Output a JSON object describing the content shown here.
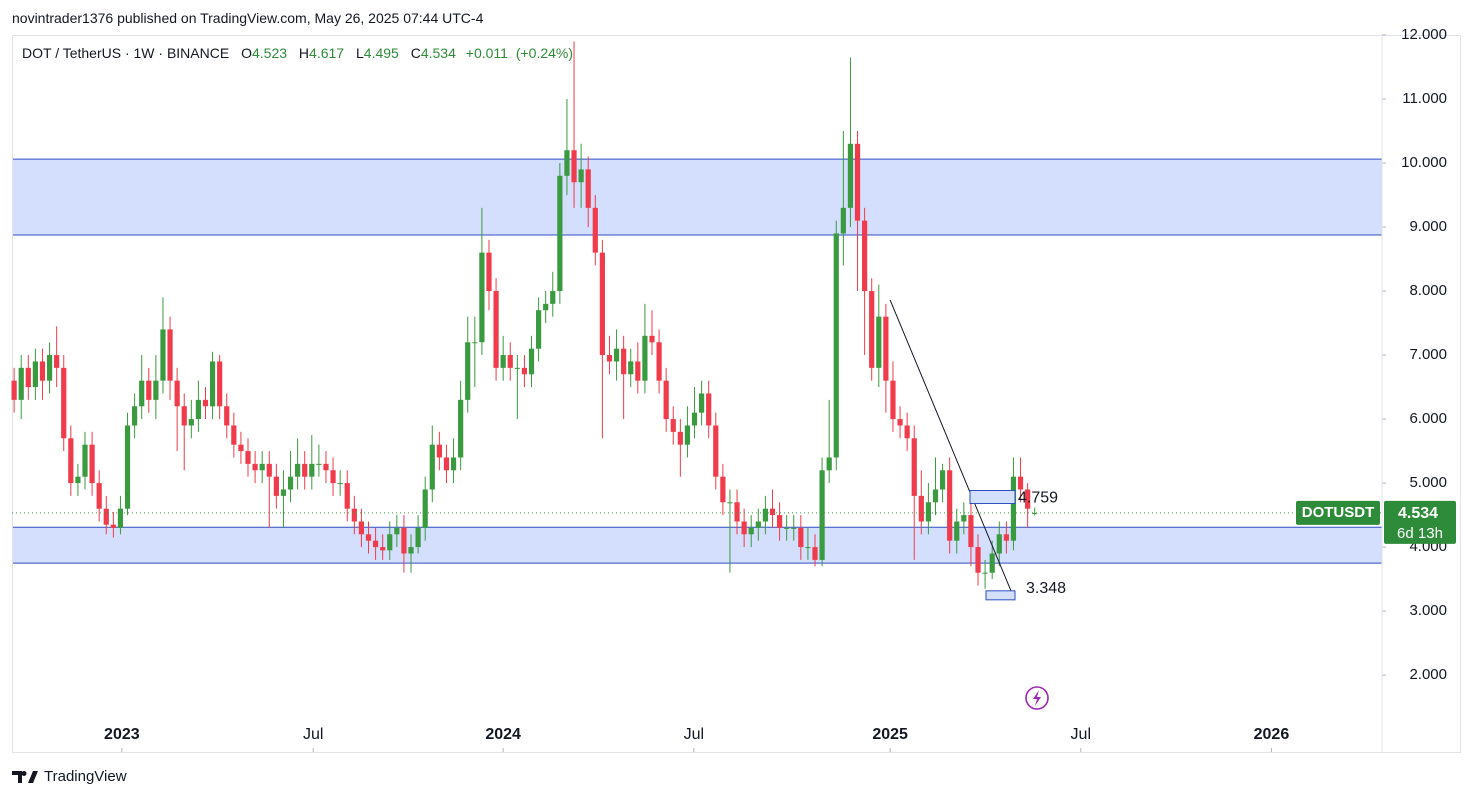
{
  "header": {
    "text": "novintrader1376 published on TradingView.com, May 26, 2025 07:44 UTC-4"
  },
  "footer": {
    "brand": "TradingView"
  },
  "chart_data": {
    "type": "candlestick",
    "title": "DOT / TetherUS · 1W · BINANCE",
    "symbol": "DOTUSDT",
    "countdown": "6d 13h",
    "ohlc_labels": [
      "O",
      "H",
      "L",
      "C"
    ],
    "change": {
      "value": 0.011,
      "label": "+0.011"
    },
    "change_percent": {
      "value": 0.24,
      "label": "(+0.24%)"
    },
    "up_color": "#3a9a3f",
    "down_color": "#ef3b4b",
    "zone_color": "#d4defd",
    "zone_border": "#2f4fc4",
    "open": [
      6.6,
      6.3,
      6.8,
      6.5,
      6.9,
      6.6,
      7.0,
      6.8,
      5.7,
      5.0,
      5.1,
      5.6,
      5.0,
      4.6,
      4.35,
      4.3,
      4.6,
      5.9,
      6.2,
      6.6,
      6.3,
      6.6,
      7.4,
      6.6,
      6.2,
      5.9,
      6.0,
      6.3,
      6.2,
      6.9,
      6.2,
      5.9,
      5.6,
      5.5,
      5.3,
      5.2,
      5.3,
      5.1,
      4.8,
      4.9,
      5.1,
      5.3,
      5.1,
      5.3,
      5.3,
      5.2,
      5.0,
      5.0,
      4.6,
      4.4,
      4.2,
      4.1,
      4.0,
      3.95,
      4.2,
      4.3,
      3.9,
      4.0,
      4.3,
      4.9,
      5.6,
      5.4,
      5.2,
      5.4,
      6.3,
      7.2,
      7.2,
      8.6,
      8.0,
      6.8,
      7.0,
      6.8,
      6.8,
      6.7,
      7.1,
      7.7,
      7.8,
      8.0,
      9.8,
      10.2,
      9.7,
      9.9,
      9.3,
      8.6,
      7.0,
      6.9,
      7.1,
      6.7,
      6.9,
      6.6,
      7.3,
      7.2,
      6.6,
      6.0,
      5.8,
      5.6,
      5.9,
      6.1,
      6.4,
      5.9,
      5.1,
      4.7,
      4.7,
      4.4,
      4.2,
      4.3,
      4.4,
      4.6,
      4.5,
      4.3,
      4.3,
      4.3,
      4.0,
      4.0,
      3.8,
      5.2,
      5.4,
      8.9,
      9.3,
      10.3,
      9.1,
      8.0,
      6.8,
      7.6,
      6.6,
      6.0,
      5.9,
      5.7,
      4.8,
      4.4,
      4.7,
      4.9,
      5.2,
      4.1,
      4.4,
      4.5,
      4.0,
      3.6,
      3.6,
      3.9,
      4.2,
      4.1,
      5.1,
      4.9,
      4.523
    ],
    "high": [
      6.8,
      7.0,
      7.0,
      7.1,
      7.1,
      7.2,
      7.45,
      7.0,
      5.9,
      5.3,
      5.8,
      5.8,
      5.2,
      4.8,
      4.55,
      4.8,
      6.1,
      6.4,
      7.0,
      6.8,
      7.0,
      7.9,
      7.6,
      6.8,
      6.4,
      6.3,
      6.6,
      6.5,
      7.05,
      7.0,
      6.4,
      6.1,
      5.8,
      5.7,
      5.5,
      5.5,
      5.5,
      5.3,
      5.2,
      5.5,
      5.7,
      5.5,
      5.75,
      5.6,
      5.5,
      5.4,
      5.2,
      5.2,
      4.8,
      4.6,
      4.4,
      4.3,
      4.2,
      4.4,
      4.5,
      4.5,
      4.2,
      4.5,
      5.1,
      5.9,
      5.8,
      5.6,
      5.7,
      6.6,
      7.6,
      7.6,
      9.3,
      8.8,
      8.2,
      7.3,
      7.2,
      7.0,
      7.0,
      7.3,
      7.9,
      8.0,
      8.3,
      10.0,
      11.0,
      11.9,
      10.3,
      10.1,
      9.5,
      8.8,
      7.3,
      7.4,
      7.3,
      7.1,
      7.2,
      7.8,
      7.7,
      7.4,
      6.8,
      6.2,
      6.0,
      6.2,
      6.5,
      6.6,
      6.6,
      6.1,
      5.3,
      4.9,
      4.9,
      4.6,
      4.5,
      4.6,
      4.8,
      4.9,
      4.7,
      4.5,
      4.5,
      4.5,
      4.3,
      4.2,
      5.4,
      6.3,
      9.1,
      10.5,
      11.65,
      10.5,
      9.3,
      8.2,
      8.1,
      7.8,
      6.9,
      6.2,
      6.1,
      5.9,
      5.2,
      5.0,
      5.4,
      5.3,
      5.4,
      4.6,
      4.7,
      4.7,
      4.2,
      3.8,
      4.1,
      4.4,
      4.4,
      5.4,
      5.4,
      5.0,
      4.617
    ],
    "low": [
      6.1,
      6.0,
      6.3,
      6.3,
      6.3,
      6.4,
      6.5,
      5.5,
      4.8,
      4.8,
      4.9,
      4.8,
      4.4,
      4.2,
      4.15,
      4.2,
      4.5,
      5.7,
      6.0,
      6.1,
      6.0,
      6.4,
      6.3,
      5.5,
      5.2,
      5.7,
      5.8,
      6.0,
      6.0,
      6.0,
      5.7,
      5.4,
      5.3,
      5.1,
      5.0,
      5.0,
      4.3,
      4.6,
      4.3,
      4.7,
      4.9,
      4.9,
      4.9,
      5.1,
      5.0,
      4.8,
      4.8,
      4.4,
      4.2,
      4.0,
      3.9,
      3.8,
      3.8,
      3.8,
      4.0,
      3.6,
      3.6,
      3.9,
      4.1,
      4.7,
      5.2,
      5.0,
      5.0,
      5.2,
      6.1,
      6.5,
      7.0,
      7.7,
      6.6,
      6.6,
      6.6,
      6.0,
      6.5,
      6.5,
      6.9,
      7.5,
      7.6,
      7.8,
      9.5,
      9.3,
      9.3,
      9.0,
      8.4,
      5.7,
      6.7,
      6.6,
      6.0,
      6.5,
      6.4,
      6.4,
      7.0,
      6.4,
      5.8,
      5.6,
      5.1,
      5.4,
      5.7,
      5.9,
      5.7,
      4.9,
      4.5,
      3.6,
      4.2,
      4.0,
      4.0,
      4.1,
      4.2,
      4.3,
      4.1,
      4.1,
      4.1,
      3.8,
      3.8,
      3.7,
      3.7,
      5.0,
      5.2,
      8.4,
      9.0,
      8.0,
      7.0,
      6.6,
      6.5,
      6.1,
      5.8,
      5.7,
      5.5,
      3.8,
      4.2,
      4.2,
      4.5,
      4.7,
      3.9,
      3.9,
      4.2,
      3.7,
      3.4,
      3.35,
      3.5,
      3.7,
      3.9,
      3.95,
      4.7,
      4.3,
      4.495
    ],
    "close": [
      6.3,
      6.8,
      6.5,
      6.9,
      6.6,
      7.0,
      6.8,
      5.7,
      5.0,
      5.1,
      5.6,
      5.0,
      4.6,
      4.35,
      4.3,
      4.6,
      5.9,
      6.2,
      6.6,
      6.3,
      6.6,
      7.4,
      6.6,
      6.2,
      5.9,
      6.0,
      6.3,
      6.2,
      6.9,
      6.2,
      5.9,
      5.6,
      5.5,
      5.3,
      5.2,
      5.3,
      5.1,
      4.8,
      4.9,
      5.1,
      5.3,
      5.1,
      5.3,
      5.3,
      5.2,
      5.0,
      5.0,
      4.6,
      4.4,
      4.2,
      4.1,
      4.0,
      3.95,
      4.2,
      4.3,
      3.9,
      4.0,
      4.3,
      4.9,
      5.6,
      5.4,
      5.2,
      5.4,
      6.3,
      7.2,
      7.2,
      8.6,
      8.0,
      6.8,
      7.0,
      6.8,
      6.8,
      6.7,
      7.1,
      7.7,
      7.8,
      8.0,
      9.8,
      10.2,
      9.7,
      9.9,
      9.3,
      8.6,
      7.0,
      6.9,
      7.1,
      6.7,
      6.9,
      6.6,
      7.3,
      7.2,
      6.6,
      6.0,
      5.8,
      5.6,
      5.9,
      6.1,
      6.4,
      5.9,
      5.1,
      4.7,
      4.7,
      4.4,
      4.2,
      4.3,
      4.4,
      4.6,
      4.5,
      4.3,
      4.3,
      4.3,
      4.0,
      4.0,
      3.8,
      5.2,
      5.4,
      8.9,
      9.3,
      10.3,
      9.1,
      8.0,
      6.8,
      7.6,
      6.6,
      6.0,
      5.9,
      5.7,
      4.8,
      4.4,
      4.7,
      4.9,
      5.2,
      4.1,
      4.4,
      4.5,
      4.0,
      3.6,
      3.6,
      3.9,
      4.2,
      4.1,
      5.1,
      4.9,
      4.6,
      4.534
    ],
    "zones": [
      [
        8.875,
        10.06
      ],
      [
        3.75,
        4.31
      ]
    ],
    "trendline": {
      "x": [
        123.6,
        141.2
      ],
      "y": [
        7.86,
        3.17
      ]
    },
    "price_labels": [
      4.759,
      3.348
    ],
    "xlim": [
      -0.3,
      193
    ],
    "xticks": [
      {
        "value": 15.2,
        "label": "2023"
      },
      {
        "value": 42.2,
        "label": "Jul"
      },
      {
        "value": 69.0,
        "label": "2024"
      },
      {
        "value": 95.9,
        "label": "Jul"
      },
      {
        "value": 123.6,
        "label": "2025"
      },
      {
        "value": 150.5,
        "label": "Jul"
      },
      {
        "value": 177.4,
        "label": "2026"
      }
    ],
    "ylim": [
      1.33,
      12
    ],
    "yticks": [
      {
        "value": 2,
        "label": "2.000"
      },
      {
        "value": 3,
        "label": "3.000"
      },
      {
        "value": 4,
        "label": "4.000"
      },
      {
        "value": 5,
        "label": "5.000"
      },
      {
        "value": 6,
        "label": "6.000"
      },
      {
        "value": 7,
        "label": "7.000"
      },
      {
        "value": 8,
        "label": "8.000"
      },
      {
        "value": 9,
        "label": "9.000"
      },
      {
        "value": 10,
        "label": "10.000"
      },
      {
        "value": 11,
        "label": "11.000"
      },
      {
        "value": 12,
        "label": "12.000"
      }
    ],
    "grid": false,
    "last_price_line": true
  }
}
